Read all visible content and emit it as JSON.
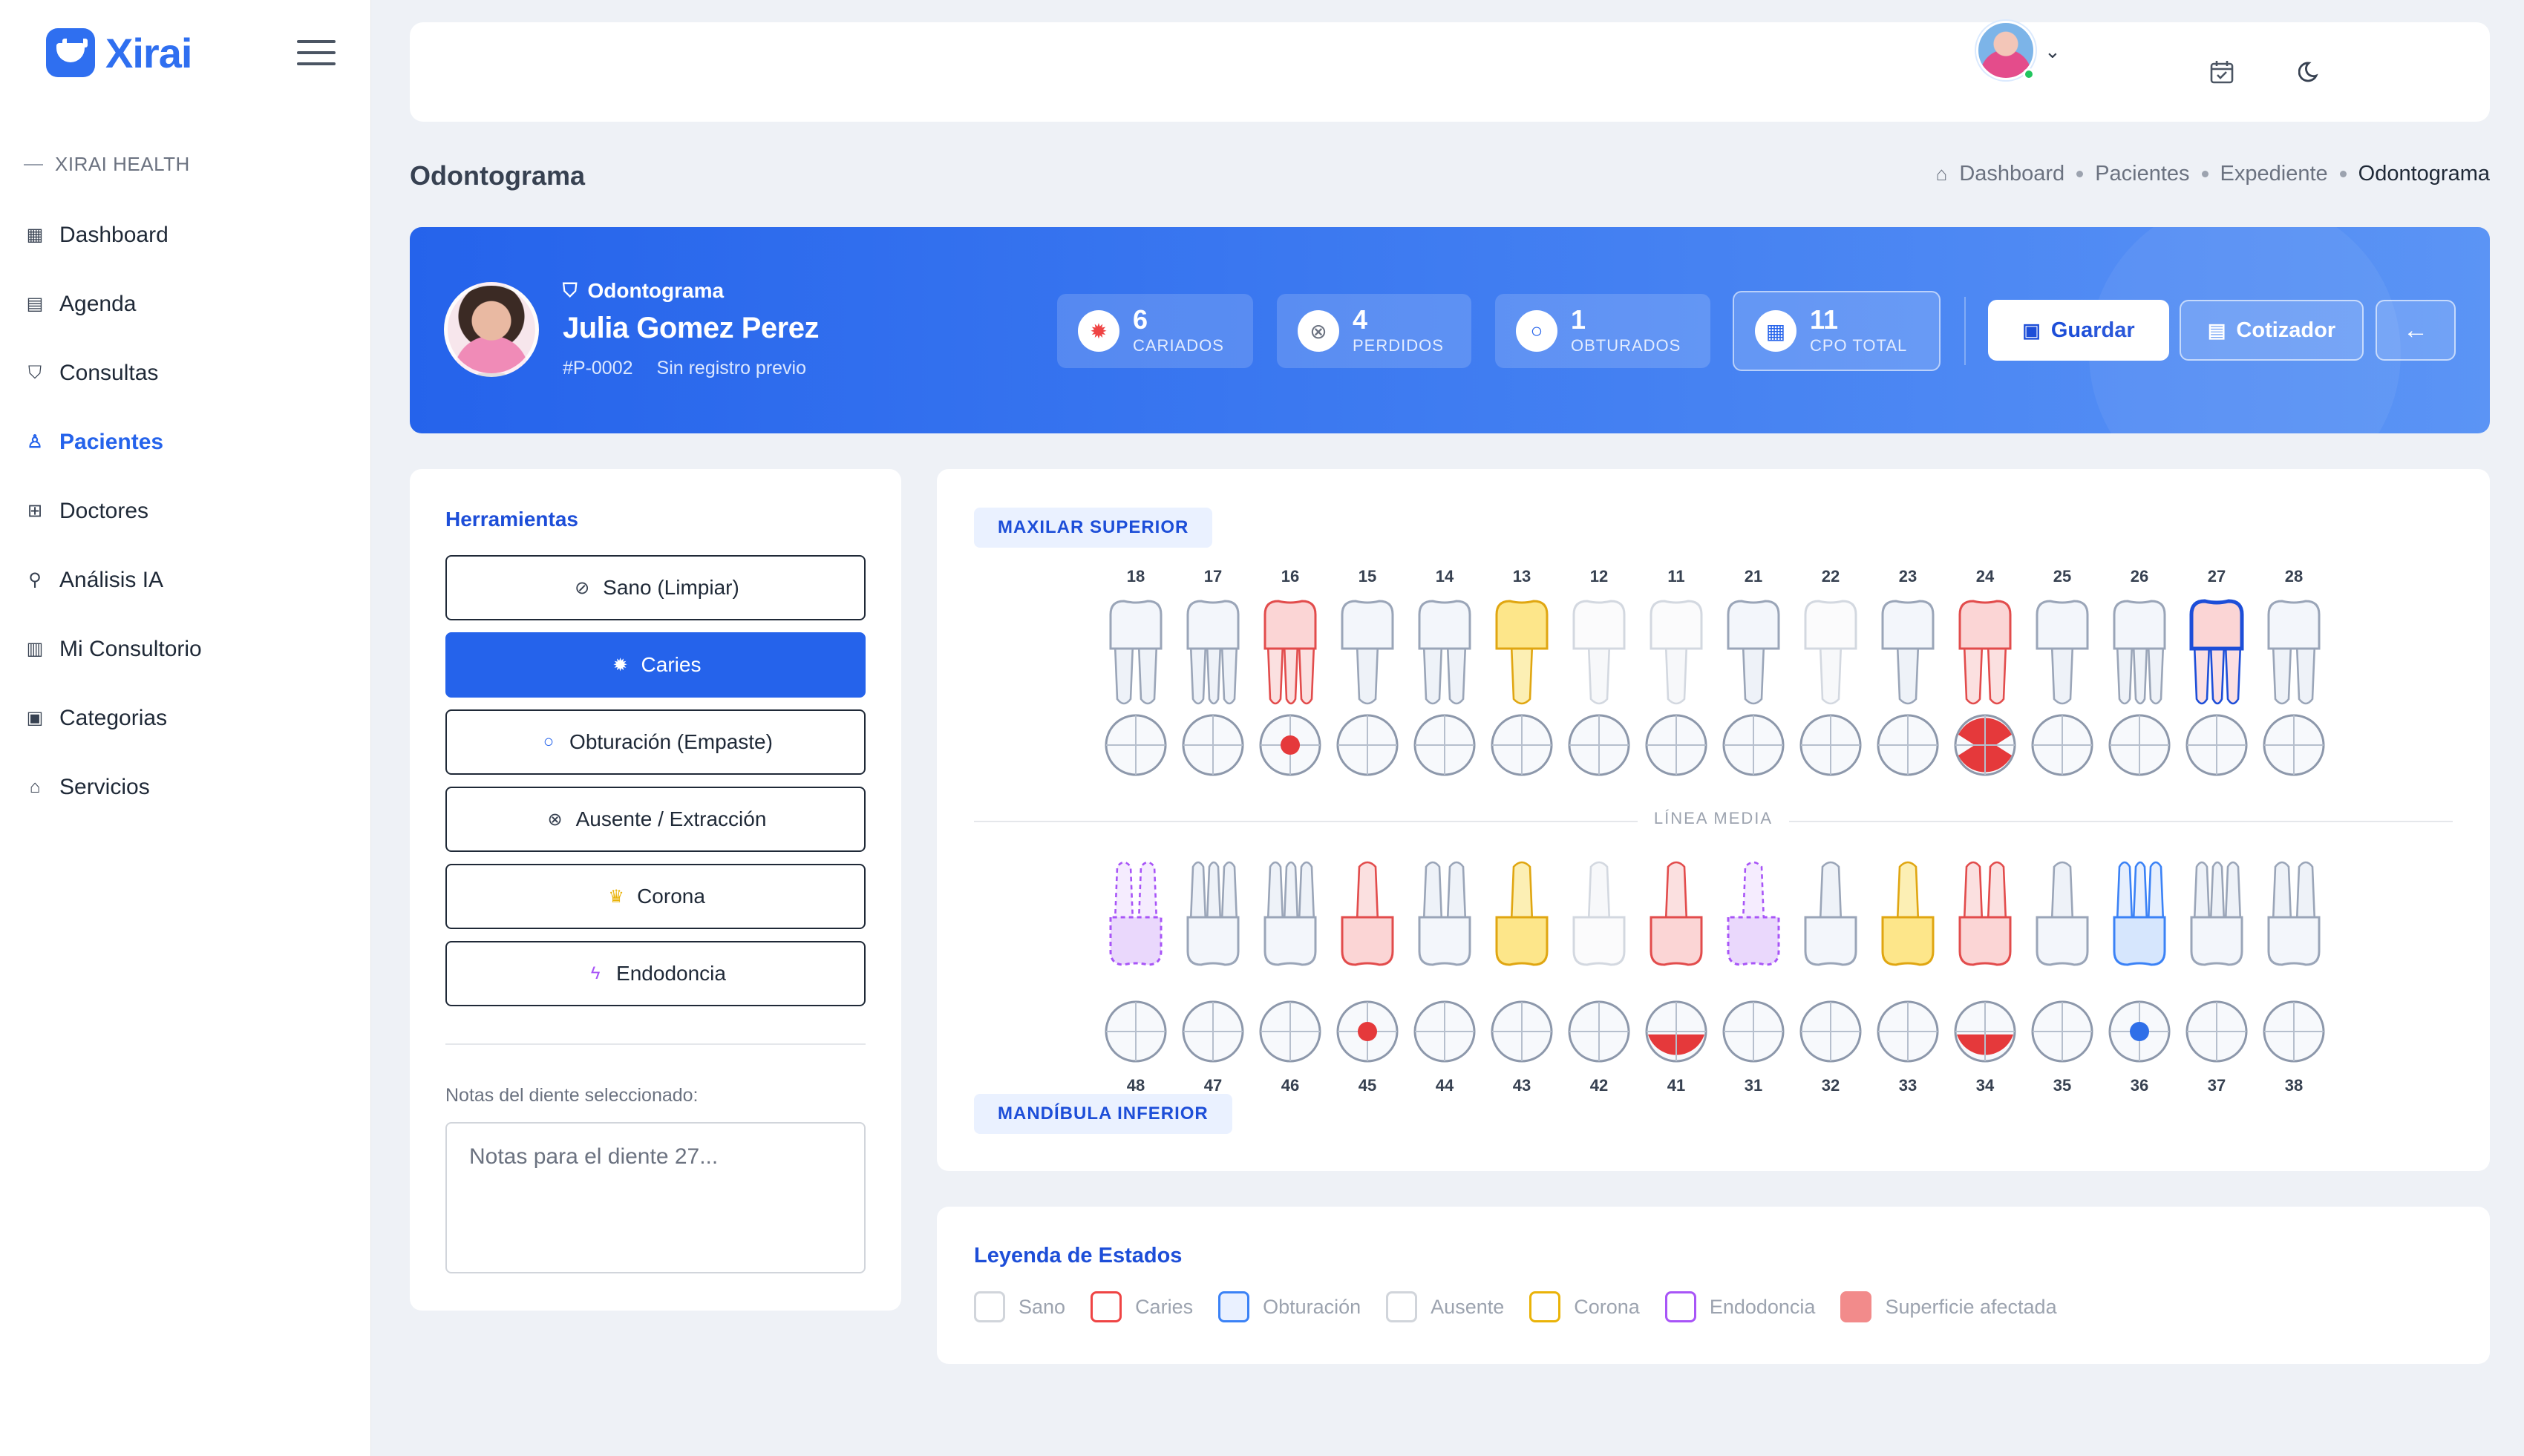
{
  "app": {
    "name": "Xirai"
  },
  "sidebar": {
    "section": "XIRAI HEALTH",
    "items": [
      {
        "label": "Dashboard",
        "icon": "dashboard-grid-icon"
      },
      {
        "label": "Agenda",
        "icon": "calendar-icon"
      },
      {
        "label": "Consultas",
        "icon": "shield-icon"
      },
      {
        "label": "Pacientes",
        "icon": "user-icon",
        "active": true
      },
      {
        "label": "Doctores",
        "icon": "medical-case-icon"
      },
      {
        "label": "Análisis IA",
        "icon": "microscope-icon"
      },
      {
        "label": "Mi Consultorio",
        "icon": "building-icon"
      },
      {
        "label": "Categorias",
        "icon": "archive-icon"
      },
      {
        "label": "Servicios",
        "icon": "store-icon"
      }
    ]
  },
  "page": {
    "title": "Odontograma",
    "breadcrumb": [
      "Dashboard",
      "Pacientes",
      "Expediente",
      "Odontograma"
    ]
  },
  "patient": {
    "kicker": "Odontograma",
    "name": "Julia Gomez Perez",
    "id": "#P-0002",
    "status": "Sin registro previo"
  },
  "stats": [
    {
      "value": "6",
      "label": "CARIADOS",
      "icon": "virus-icon",
      "color": "#ef4444"
    },
    {
      "value": "4",
      "label": "PERDIDOS",
      "icon": "x-circle-icon",
      "color": "#6b7280"
    },
    {
      "value": "1",
      "label": "OBTURADOS",
      "icon": "circle-icon",
      "color": "#2563eb"
    },
    {
      "value": "11",
      "label": "CPO TOTAL",
      "icon": "calculator-icon",
      "color": "#2563eb"
    }
  ],
  "actions": {
    "save": "Guardar",
    "quote": "Cotizador",
    "back": "←"
  },
  "tools": {
    "title": "Herramientas",
    "items": [
      {
        "label": "Sano (Limpiar)",
        "icon": "check-circle-icon",
        "glyph": "⊘",
        "color": "#374151"
      },
      {
        "label": "Caries",
        "icon": "virus-icon",
        "glyph": "✹",
        "color": "#ffffff",
        "active": true
      },
      {
        "label": "Obturación (Empaste)",
        "icon": "circle-icon",
        "glyph": "○",
        "color": "#2563eb"
      },
      {
        "label": "Ausente / Extracción",
        "icon": "x-circle-icon",
        "glyph": "⊗",
        "color": "#374151"
      },
      {
        "label": "Corona",
        "icon": "crown-icon",
        "glyph": "♛",
        "color": "#eab308"
      },
      {
        "label": "Endodoncia",
        "icon": "bolt-icon",
        "glyph": "ϟ",
        "color": "#a855f7"
      }
    ],
    "notes_label": "Notas del diente seleccionado:",
    "notes_placeholder": "Notas para el diente 27..."
  },
  "chart": {
    "upper_label": "MAXILAR SUPERIOR",
    "lower_label": "MANDÍBULA INFERIOR",
    "midline": "LÍNEA MEDIA",
    "upper": [
      {
        "n": "18",
        "state": "sano",
        "roots": 2,
        "surface": null
      },
      {
        "n": "17",
        "state": "sano",
        "roots": 3,
        "surface": null
      },
      {
        "n": "16",
        "state": "caries",
        "roots": 3,
        "surface": "center"
      },
      {
        "n": "15",
        "state": "sano",
        "roots": 1,
        "surface": null
      },
      {
        "n": "14",
        "state": "sano",
        "roots": 2,
        "surface": null
      },
      {
        "n": "13",
        "state": "corona",
        "roots": 1,
        "surface": null
      },
      {
        "n": "12",
        "state": "ausente",
        "roots": 1,
        "surface": null
      },
      {
        "n": "11",
        "state": "ausente",
        "roots": 1,
        "surface": null
      },
      {
        "n": "21",
        "state": "sano",
        "roots": 1,
        "surface": null
      },
      {
        "n": "22",
        "state": "ausente",
        "roots": 1,
        "surface": null
      },
      {
        "n": "23",
        "state": "sano",
        "roots": 1,
        "surface": null
      },
      {
        "n": "24",
        "state": "caries",
        "roots": 2,
        "surface": "top-bottom"
      },
      {
        "n": "25",
        "state": "sano",
        "roots": 1,
        "surface": null
      },
      {
        "n": "26",
        "state": "sano",
        "roots": 3,
        "surface": null
      },
      {
        "n": "27",
        "state": "selected",
        "roots": 3,
        "surface": null
      },
      {
        "n": "28",
        "state": "sano",
        "roots": 2,
        "surface": null
      }
    ],
    "lower": [
      {
        "n": "48",
        "state": "endodoncia",
        "roots": 2,
        "surface": null
      },
      {
        "n": "47",
        "state": "sano",
        "roots": 3,
        "surface": null
      },
      {
        "n": "46",
        "state": "sano",
        "roots": 3,
        "surface": null
      },
      {
        "n": "45",
        "state": "caries",
        "roots": 1,
        "surface": "center"
      },
      {
        "n": "44",
        "state": "sano",
        "roots": 2,
        "surface": null
      },
      {
        "n": "43",
        "state": "corona",
        "roots": 1,
        "surface": null
      },
      {
        "n": "42",
        "state": "ausente",
        "roots": 1,
        "surface": null
      },
      {
        "n": "41",
        "state": "caries",
        "roots": 1,
        "surface": "bottom"
      },
      {
        "n": "31",
        "state": "endodoncia",
        "roots": 1,
        "surface": null
      },
      {
        "n": "32",
        "state": "sano",
        "roots": 1,
        "surface": null
      },
      {
        "n": "33",
        "state": "corona",
        "roots": 1,
        "surface": null
      },
      {
        "n": "34",
        "state": "caries",
        "roots": 2,
        "surface": "bottom"
      },
      {
        "n": "35",
        "state": "sano",
        "roots": 1,
        "surface": null
      },
      {
        "n": "36",
        "state": "obturacion",
        "roots": 3,
        "surface": "center-blue"
      },
      {
        "n": "37",
        "state": "sano",
        "roots": 3,
        "surface": null
      },
      {
        "n": "38",
        "state": "sano",
        "roots": 2,
        "surface": null
      }
    ]
  },
  "legend": {
    "title": "Leyenda de Estados",
    "items": [
      {
        "label": "Sano",
        "border": "#d1d5db",
        "fill": "#ffffff"
      },
      {
        "label": "Caries",
        "border": "#ef4444",
        "fill": "#ffffff"
      },
      {
        "label": "Obturación",
        "border": "#3b82f6",
        "fill": "#eaf1ff"
      },
      {
        "label": "Ausente",
        "border": "#d1d5db",
        "fill": "#ffffff"
      },
      {
        "label": "Corona",
        "border": "#eab308",
        "fill": "#ffffff"
      },
      {
        "label": "Endodoncia",
        "border": "#a855f7",
        "fill": "#ffffff"
      },
      {
        "label": "Superficie afectada",
        "border": "#f28b8b",
        "fill": "#f28b8b"
      }
    ]
  }
}
